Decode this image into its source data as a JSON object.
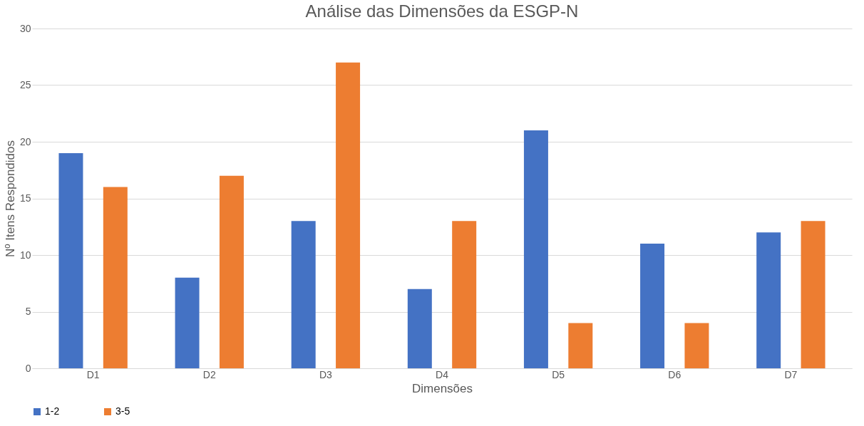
{
  "chart_data": {
    "type": "bar",
    "title": "Análise das Dimensões da ESGP-N",
    "xlabel": "Dimensões",
    "ylabel": "Nº Itens Respondidos",
    "categories": [
      "D1",
      "D2",
      "D3",
      "D4",
      "D5",
      "D6",
      "D7"
    ],
    "series": [
      {
        "name": "1-2",
        "color": "#4472c4",
        "values": [
          19,
          8,
          13,
          7,
          21,
          11,
          12
        ]
      },
      {
        "name": "3-5",
        "color": "#ed7d31",
        "values": [
          16,
          17,
          27,
          13,
          4,
          4,
          13
        ]
      }
    ],
    "ylim": [
      0,
      30
    ],
    "yticks": [
      0,
      5,
      10,
      15,
      20,
      25,
      30
    ],
    "grid": "y",
    "legend": "bottom"
  }
}
